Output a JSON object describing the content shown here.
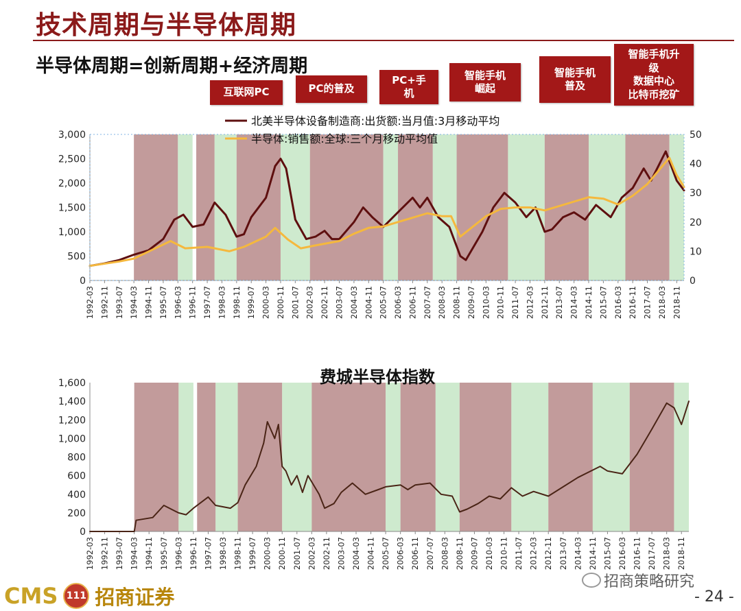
{
  "page": {
    "title": "技术周期与半导体周期",
    "subtitle": "半导体周期=创新周期+经济周期",
    "page_number": "- 24 -"
  },
  "phases": [
    {
      "label": "互联网PC"
    },
    {
      "label": "PC的普及"
    },
    {
      "label": "PC+手\n机"
    },
    {
      "label": "智能手机\n崛起"
    },
    {
      "label": "智能手机\n普及"
    },
    {
      "label": "智能手机升\n级\n数据中心\n比特币挖矿"
    }
  ],
  "footer": {
    "logo_en": "CMS",
    "logo_medal": "111",
    "logo_cn": "招商证券",
    "watermark": "招商策略研究"
  },
  "colors": {
    "red_band": "#b78a8a",
    "green_band": "#c6e6c6",
    "equipment_line": "#5e0f0f",
    "sales_line": "#f5b83d",
    "sox_line": "#4a2416",
    "title_red": "#8b1a1a"
  },
  "chart_data": [
    {
      "type": "line",
      "x_start": "1992-03",
      "x_end": "2019-03",
      "xtick_labels": [
        "1992-03",
        "1992-11",
        "1993-07",
        "1994-03",
        "1994-11",
        "1995-07",
        "1996-03",
        "1996-11",
        "1997-07",
        "1998-03",
        "1998-11",
        "1999-07",
        "2000-03",
        "2000-11",
        "2001-07",
        "2002-03",
        "2002-11",
        "2003-07",
        "2004-03",
        "2004-11",
        "2005-07",
        "2006-03",
        "2006-11",
        "2007-07",
        "2008-03",
        "2008-11",
        "2009-07",
        "2010-03",
        "2010-11",
        "2011-07",
        "2012-03",
        "2012-11",
        "2013-07",
        "2014-03",
        "2014-11",
        "2015-07",
        "2016-03",
        "2016-11",
        "2017-07",
        "2018-03",
        "2018-11"
      ],
      "ylim_left": [
        0,
        3000
      ],
      "ytick_left": [
        "0",
        "500",
        "1,000",
        "1,500",
        "2,000",
        "2,500",
        "3,000"
      ],
      "ylim_right": [
        0,
        50
      ],
      "ytick_right": [
        "0",
        "10",
        "20",
        "30",
        "40",
        "50"
      ],
      "legend": [
        "北美半导体设备制造商:出货额:当月值:3月移动平均",
        "半导体:销售额:全球:三个月移动平均值"
      ],
      "shading": [
        {
          "start": "1994-03",
          "end": "1996-03",
          "phase": "red"
        },
        {
          "start": "1996-03",
          "end": "1996-11",
          "phase": "green"
        },
        {
          "start": "1997-01",
          "end": "1997-11",
          "phase": "red"
        },
        {
          "start": "1997-11",
          "end": "1998-11",
          "phase": "green"
        },
        {
          "start": "1998-11",
          "end": "2000-11",
          "phase": "red"
        },
        {
          "start": "2000-11",
          "end": "2002-03",
          "phase": "green"
        },
        {
          "start": "2002-03",
          "end": "2005-07",
          "phase": "red"
        },
        {
          "start": "2005-07",
          "end": "2006-03",
          "phase": "green"
        },
        {
          "start": "2006-03",
          "end": "2007-10",
          "phase": "red"
        },
        {
          "start": "2007-10",
          "end": "2008-11",
          "phase": "green"
        },
        {
          "start": "2008-11",
          "end": "2011-03",
          "phase": "red"
        },
        {
          "start": "2011-03",
          "end": "2012-11",
          "phase": "green"
        },
        {
          "start": "2012-11",
          "end": "2014-11",
          "phase": "red"
        },
        {
          "start": "2014-11",
          "end": "2016-07",
          "phase": "green"
        },
        {
          "start": "2016-07",
          "end": "2018-07",
          "phase": "red"
        },
        {
          "start": "2018-07",
          "end": "2019-03",
          "phase": "green"
        }
      ],
      "series": [
        {
          "name": "北美半导体设备制造商:出货额:当月值:3月移动平均",
          "axis": "left",
          "points": [
            [
              "1992-03",
              300
            ],
            [
              "1992-11",
              350
            ],
            [
              "1993-07",
              420
            ],
            [
              "1994-03",
              530
            ],
            [
              "1994-11",
              620
            ],
            [
              "1995-07",
              850
            ],
            [
              "1996-01",
              1250
            ],
            [
              "1996-06",
              1350
            ],
            [
              "1996-11",
              1100
            ],
            [
              "1997-05",
              1150
            ],
            [
              "1997-11",
              1600
            ],
            [
              "1998-05",
              1350
            ],
            [
              "1998-11",
              900
            ],
            [
              "1999-03",
              950
            ],
            [
              "1999-07",
              1300
            ],
            [
              "2000-03",
              1700
            ],
            [
              "2000-08",
              2350
            ],
            [
              "2000-11",
              2500
            ],
            [
              "2001-02",
              2300
            ],
            [
              "2001-07",
              1250
            ],
            [
              "2002-01",
              850
            ],
            [
              "2002-06",
              900
            ],
            [
              "2002-11",
              1020
            ],
            [
              "2003-03",
              850
            ],
            [
              "2003-07",
              850
            ],
            [
              "2004-03",
              1200
            ],
            [
              "2004-08",
              1500
            ],
            [
              "2005-01",
              1300
            ],
            [
              "2005-07",
              1100
            ],
            [
              "2006-03",
              1400
            ],
            [
              "2006-11",
              1700
            ],
            [
              "2007-03",
              1500
            ],
            [
              "2007-07",
              1700
            ],
            [
              "2008-01",
              1300
            ],
            [
              "2008-07",
              1100
            ],
            [
              "2009-01",
              500
            ],
            [
              "2009-04",
              420
            ],
            [
              "2010-01",
              1000
            ],
            [
              "2010-07",
              1500
            ],
            [
              "2011-01",
              1800
            ],
            [
              "2011-07",
              1600
            ],
            [
              "2012-01",
              1300
            ],
            [
              "2012-06",
              1500
            ],
            [
              "2012-11",
              1000
            ],
            [
              "2013-03",
              1050
            ],
            [
              "2013-09",
              1300
            ],
            [
              "2014-03",
              1400
            ],
            [
              "2014-09",
              1250
            ],
            [
              "2015-03",
              1550
            ],
            [
              "2015-11",
              1300
            ],
            [
              "2016-05",
              1700
            ],
            [
              "2016-11",
              1900
            ],
            [
              "2017-05",
              2300
            ],
            [
              "2017-09",
              2050
            ],
            [
              "2018-03",
              2500
            ],
            [
              "2018-05",
              2650
            ],
            [
              "2018-11",
              2050
            ],
            [
              "2019-03",
              1850
            ]
          ]
        },
        {
          "name": "半导体:销售额:全球:三个月移动平均值",
          "axis": "right",
          "points": [
            [
              "1992-03",
              5
            ],
            [
              "1993-07",
              6.5
            ],
            [
              "1994-03",
              7.5
            ],
            [
              "1995-01",
              10.5
            ],
            [
              "1995-11",
              13.5
            ],
            [
              "1996-07",
              11
            ],
            [
              "1997-07",
              11.5
            ],
            [
              "1998-07",
              10
            ],
            [
              "1999-03",
              11.5
            ],
            [
              "2000-03",
              15
            ],
            [
              "2000-08",
              18
            ],
            [
              "2001-03",
              14
            ],
            [
              "2001-10",
              11
            ],
            [
              "2002-06",
              12
            ],
            [
              "2003-07",
              13.5
            ],
            [
              "2004-03",
              16
            ],
            [
              "2004-11",
              18
            ],
            [
              "2005-07",
              18.5
            ],
            [
              "2006-03",
              20
            ],
            [
              "2006-11",
              21.5
            ],
            [
              "2007-07",
              23
            ],
            [
              "2008-03",
              22
            ],
            [
              "2008-08",
              22
            ],
            [
              "2009-01",
              15
            ],
            [
              "2009-05",
              17
            ],
            [
              "2010-03",
              22
            ],
            [
              "2010-11",
              24.5
            ],
            [
              "2011-07",
              25
            ],
            [
              "2012-03",
              25
            ],
            [
              "2012-11",
              24
            ],
            [
              "2013-07",
              25.5
            ],
            [
              "2014-03",
              27
            ],
            [
              "2014-11",
              28.5
            ],
            [
              "2015-07",
              28
            ],
            [
              "2016-03",
              26
            ],
            [
              "2016-11",
              29
            ],
            [
              "2017-07",
              33
            ],
            [
              "2018-03",
              39
            ],
            [
              "2018-07",
              42
            ],
            [
              "2018-11",
              36
            ],
            [
              "2019-03",
              32
            ]
          ]
        }
      ]
    },
    {
      "type": "line",
      "title": "费城半导体指数",
      "x_start": "1992-03",
      "x_end": "2019-03",
      "xtick_labels": [
        "1992-03",
        "1992-11",
        "1993-07",
        "1994-03",
        "1994-11",
        "1995-07",
        "1996-03",
        "1996-11",
        "1997-07",
        "1998-03",
        "1998-11",
        "1999-07",
        "2000-03",
        "2000-11",
        "2001-07",
        "2002-03",
        "2002-11",
        "2003-07",
        "2004-03",
        "2004-11",
        "2005-07",
        "2006-03",
        "2006-11",
        "2007-07",
        "2008-03",
        "2008-11",
        "2009-07",
        "2010-03",
        "2010-11",
        "2011-07",
        "2012-03",
        "2012-11",
        "2013-07",
        "2014-03",
        "2014-11",
        "2015-07",
        "2016-03",
        "2016-11",
        "2017-07",
        "2018-03",
        "2018-11"
      ],
      "ylim": [
        0,
        1600
      ],
      "ytick": [
        "0",
        "200",
        "400",
        "600",
        "800",
        "1,000",
        "1,200",
        "1,400",
        "1,600"
      ],
      "shading_same_as": "chart_data[0].shading",
      "series": [
        {
          "name": "费城半导体指数",
          "points": [
            [
              "1992-03",
              0
            ],
            [
              "1994-03",
              0
            ],
            [
              "1994-04",
              120
            ],
            [
              "1995-01",
              150
            ],
            [
              "1995-07",
              280
            ],
            [
              "1996-03",
              200
            ],
            [
              "1996-07",
              180
            ],
            [
              "1996-11",
              250
            ],
            [
              "1997-07",
              370
            ],
            [
              "1997-11",
              280
            ],
            [
              "1998-07",
              250
            ],
            [
              "1998-11",
              310
            ],
            [
              "1999-03",
              500
            ],
            [
              "1999-09",
              700
            ],
            [
              "2000-01",
              950
            ],
            [
              "2000-03",
              1180
            ],
            [
              "2000-07",
              1000
            ],
            [
              "2000-09",
              1150
            ],
            [
              "2000-11",
              700
            ],
            [
              "2001-01",
              650
            ],
            [
              "2001-04",
              500
            ],
            [
              "2001-07",
              600
            ],
            [
              "2001-10",
              420
            ],
            [
              "2002-01",
              600
            ],
            [
              "2002-07",
              400
            ],
            [
              "2002-10",
              250
            ],
            [
              "2003-03",
              300
            ],
            [
              "2003-07",
              420
            ],
            [
              "2004-01",
              520
            ],
            [
              "2004-08",
              400
            ],
            [
              "2005-03",
              450
            ],
            [
              "2005-07",
              480
            ],
            [
              "2006-03",
              500
            ],
            [
              "2006-07",
              450
            ],
            [
              "2006-11",
              500
            ],
            [
              "2007-07",
              520
            ],
            [
              "2008-01",
              400
            ],
            [
              "2008-07",
              380
            ],
            [
              "2008-11",
              210
            ],
            [
              "2009-03",
              240
            ],
            [
              "2009-09",
              300
            ],
            [
              "2010-03",
              380
            ],
            [
              "2010-09",
              350
            ],
            [
              "2011-03",
              470
            ],
            [
              "2011-09",
              380
            ],
            [
              "2012-03",
              430
            ],
            [
              "2012-11",
              380
            ],
            [
              "2013-07",
              480
            ],
            [
              "2014-03",
              580
            ],
            [
              "2014-11",
              660
            ],
            [
              "2015-03",
              700
            ],
            [
              "2015-07",
              650
            ],
            [
              "2016-03",
              620
            ],
            [
              "2016-11",
              830
            ],
            [
              "2017-07",
              1100
            ],
            [
              "2018-03",
              1380
            ],
            [
              "2018-07",
              1330
            ],
            [
              "2018-11",
              1150
            ],
            [
              "2019-03",
              1400
            ]
          ]
        }
      ]
    }
  ]
}
